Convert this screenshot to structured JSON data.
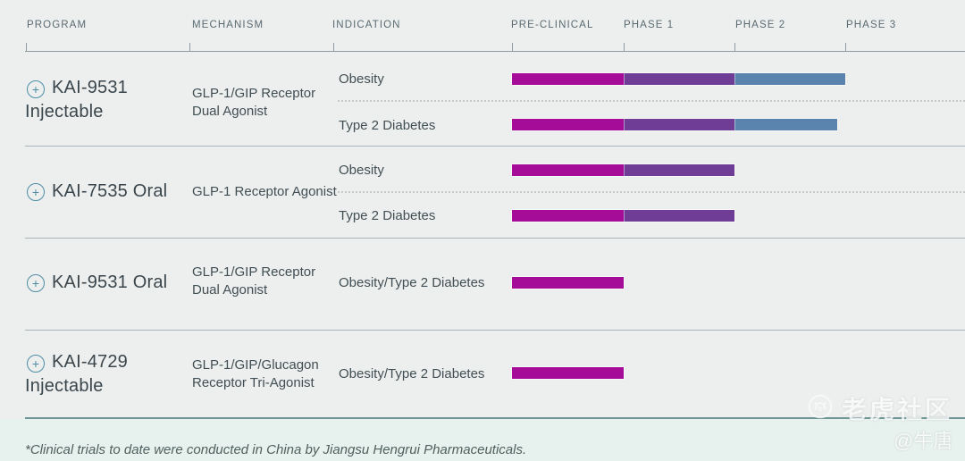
{
  "header": {
    "columns": [
      "PROGRAM",
      "MECHANISM",
      "INDICATION",
      "PRE-CLINICAL",
      "PHASE 1",
      "PHASE 2",
      "PHASE 3"
    ]
  },
  "icons": {
    "plus": "+",
    "tiger_logo": "tiger-face-in-circle"
  },
  "rows": [
    {
      "program_line1": "KAI-9531",
      "program_line2": "Injectable",
      "mechanism_line1": "GLP-1/GIP Receptor",
      "mechanism_line2": "Dual Agonist",
      "indication1": "Obesity",
      "indication2": "Type 2 Diabetes"
    },
    {
      "program_line1": "KAI-7535 Oral",
      "program_line2": "",
      "mechanism_line1": "GLP-1 Receptor Agonist",
      "mechanism_line2": "",
      "indication1": "Obesity",
      "indication2": "Type 2 Diabetes"
    },
    {
      "program_line1": "KAI-9531 Oral",
      "program_line2": "",
      "mechanism_line1": "GLP-1/GIP Receptor",
      "mechanism_line2": "Dual Agonist",
      "indication1": "Obesity/Type 2 Diabetes",
      "indication2": ""
    },
    {
      "program_line1": "KAI-4729",
      "program_line2": "Injectable",
      "mechanism_line1": "GLP-1/GIP/Glucagon",
      "mechanism_line2": "Receptor Tri-Agonist",
      "indication1": "Obesity/Type 2 Diabetes",
      "indication2": ""
    }
  ],
  "footer": {
    "note": "*Clinical trials to date were conducted in China by Jiangsu Hengrui Pharmaceuticals."
  },
  "watermark": {
    "brand": "老虎社区",
    "user": "@牛唐"
  },
  "colors": {
    "preclinical_bar": "#A50D98",
    "phase1_bar": "#6F3D95",
    "phase2_bar": "#5A83AD",
    "background": "#EDEFEE",
    "accent_teal": "#4F8CA3"
  },
  "chart_data": {
    "type": "gantt",
    "phases": [
      "Pre-clinical",
      "Phase 1",
      "Phase 2",
      "Phase 3"
    ],
    "phase_colors": [
      "#A50D98",
      "#6F3D95",
      "#5A83AD"
    ],
    "programs": [
      {
        "program": "KAI-9531 Injectable",
        "mechanism": "GLP-1/GIP Receptor Dual Agonist",
        "bars": [
          {
            "indication": "Obesity",
            "start": 0,
            "end": 3.0
          },
          {
            "indication": "Type 2 Diabetes",
            "start": 0,
            "end": 2.93
          }
        ]
      },
      {
        "program": "KAI-7535 Oral",
        "mechanism": "GLP-1 Receptor Agonist",
        "bars": [
          {
            "indication": "Obesity",
            "start": 0,
            "end": 2.0
          },
          {
            "indication": "Type 2 Diabetes",
            "start": 0,
            "end": 2.0
          }
        ]
      },
      {
        "program": "KAI-9531 Oral",
        "mechanism": "GLP-1/GIP Receptor Dual Agonist",
        "bars": [
          {
            "indication": "Obesity/Type 2 Diabetes",
            "start": 0,
            "end": 1.0
          }
        ]
      },
      {
        "program": "KAI-4729 Injectable",
        "mechanism": "GLP-1/GIP/Glucagon Receptor Tri-Agonist",
        "bars": [
          {
            "indication": "Obesity/Type 2 Diabetes",
            "start": 0,
            "end": 1.0
          }
        ]
      }
    ]
  }
}
